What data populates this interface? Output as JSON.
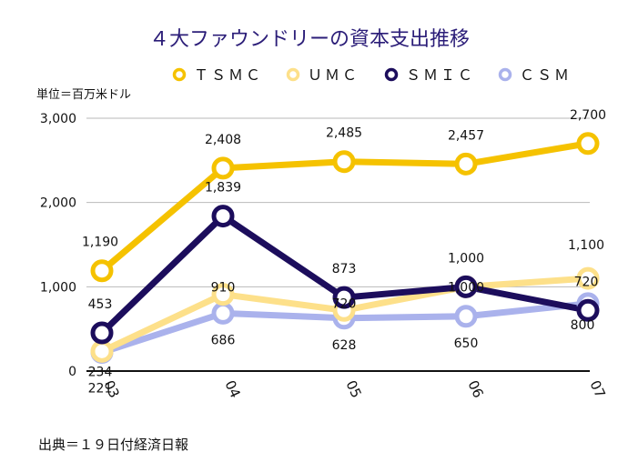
{
  "chart_data": {
    "type": "line",
    "title": "４大ファウンドリーの資本支出推移",
    "unit_label": "単位＝百万米ドル",
    "source": "出典＝１９日付経済日報",
    "categories": [
      "03",
      "04",
      "05",
      "06",
      "07"
    ],
    "ylim": [
      0,
      3000
    ],
    "yticks": [
      0,
      1000,
      2000,
      3000
    ],
    "ytick_labels": [
      "0",
      "1,000",
      "2,000",
      "3,000"
    ],
    "grid": true,
    "legend_position": "top-right",
    "series": [
      {
        "name": "ＴＳＭＣ",
        "color": "#f5c200",
        "values": [
          1190,
          2408,
          2485,
          2457,
          2700
        ],
        "labels": [
          "1,190",
          "2,408",
          "2,485",
          "2,457",
          "2,700"
        ]
      },
      {
        "name": "ＵＭＣ",
        "color": "#fde08a",
        "values": [
          234,
          910,
          720,
          1000,
          1100
        ],
        "labels": [
          "234",
          "910",
          "720",
          "1,000",
          "1,100"
        ]
      },
      {
        "name": "ＳＭＩＣ",
        "color": "#1c0d5c",
        "values": [
          453,
          1839,
          873,
          1000,
          720
        ],
        "labels": [
          "453",
          "1,839",
          "873",
          "1,000",
          "720"
        ]
      },
      {
        "name": "ＣＳＭ",
        "color": "#aab2ec",
        "values": [
          221,
          686,
          628,
          650,
          800
        ],
        "labels": [
          "221",
          "686",
          "628",
          "650",
          "800"
        ]
      }
    ]
  }
}
